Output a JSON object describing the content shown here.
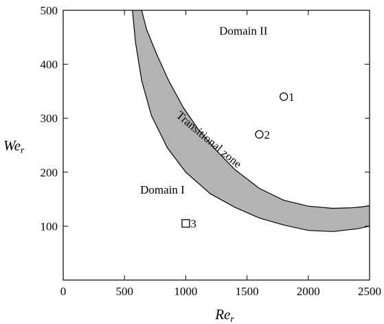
{
  "chart_data": {
    "type": "scatter",
    "title": "",
    "xlabel": {
      "main": "Re",
      "sub": "r"
    },
    "ylabel": {
      "main": "We",
      "sub": "r"
    },
    "xlim": [
      0,
      2500
    ],
    "ylim": [
      0,
      500
    ],
    "xticks": [
      "0",
      "500",
      "1000",
      "1500",
      "2000",
      "2500"
    ],
    "xtick_values": [
      0,
      500,
      1000,
      1500,
      2000,
      2500
    ],
    "yticks": [
      "100",
      "200",
      "300",
      "400",
      "500"
    ],
    "ytick_values": [
      100,
      200,
      300,
      400,
      500
    ],
    "grid": false,
    "points": [
      {
        "label": "1",
        "x": 1800,
        "y": 340,
        "marker": "circle"
      },
      {
        "label": "2",
        "x": 1600,
        "y": 270,
        "marker": "circle"
      },
      {
        "label": "3",
        "x": 1000,
        "y": 105,
        "marker": "square"
      }
    ],
    "band": {
      "name": "Transitional zone",
      "fill": "#b3b3b3",
      "inner_curve": [
        [
          640,
          500
        ],
        [
          680,
          465
        ],
        [
          760,
          420
        ],
        [
          860,
          370
        ],
        [
          980,
          320
        ],
        [
          1100,
          280
        ],
        [
          1250,
          240
        ],
        [
          1400,
          205
        ],
        [
          1600,
          170
        ],
        [
          1800,
          148
        ],
        [
          2000,
          137
        ],
        [
          2200,
          133
        ],
        [
          2350,
          134
        ],
        [
          2450,
          136
        ],
        [
          2500,
          138
        ]
      ],
      "outer_curve": [
        [
          2500,
          100
        ],
        [
          2400,
          95
        ],
        [
          2200,
          90
        ],
        [
          2000,
          92
        ],
        [
          1800,
          102
        ],
        [
          1600,
          115
        ],
        [
          1400,
          135
        ],
        [
          1200,
          160
        ],
        [
          1000,
          200
        ],
        [
          850,
          245
        ],
        [
          720,
          305
        ],
        [
          640,
          370
        ],
        [
          590,
          440
        ],
        [
          565,
          500
        ]
      ]
    },
    "annotations": [
      {
        "text": "Domain II",
        "x": 1470,
        "y": 455,
        "anchor": "middle"
      },
      {
        "text": "Domain I",
        "x": 810,
        "y": 160,
        "anchor": "middle"
      },
      {
        "text": "Transitional zone",
        "x": 1170,
        "y": 255,
        "anchor": "middle",
        "rotate": 40
      }
    ],
    "colors": {
      "axis": "#000000",
      "band": "#b3b3b3",
      "marker_fill": "#ffffff"
    }
  }
}
